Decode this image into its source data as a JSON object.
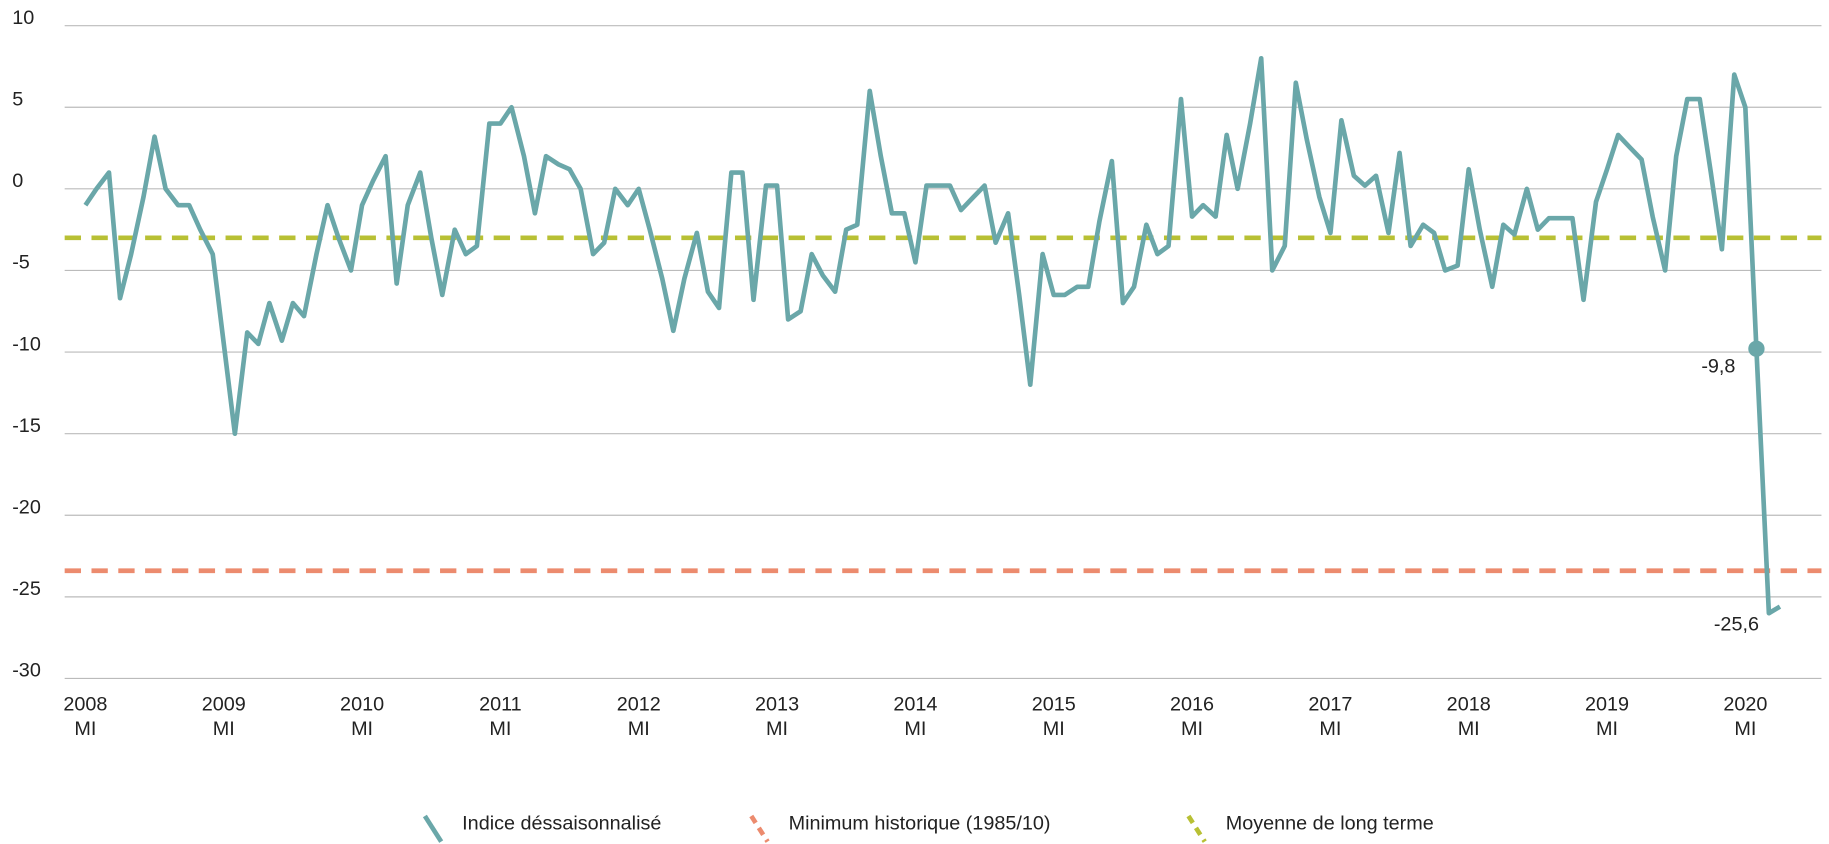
{
  "chart_data": {
    "type": "line",
    "x": [
      2008,
      2008.08,
      2008.17,
      2008.25,
      2008.33,
      2008.42,
      2008.5,
      2008.58,
      2008.67,
      2008.75,
      2008.83,
      2008.92,
      2009,
      2009.08,
      2009.17,
      2009.25,
      2009.33,
      2009.42,
      2009.5,
      2009.58,
      2009.67,
      2009.75,
      2009.83,
      2009.92,
      2010,
      2010.08,
      2010.17,
      2010.25,
      2010.33,
      2010.42,
      2010.5,
      2010.58,
      2010.67,
      2010.75,
      2010.83,
      2010.92,
      2011,
      2011.08,
      2011.17,
      2011.25,
      2011.33,
      2011.42,
      2011.5,
      2011.58,
      2011.67,
      2011.75,
      2011.83,
      2011.92,
      2012,
      2012.08,
      2012.17,
      2012.25,
      2012.33,
      2012.42,
      2012.5,
      2012.58,
      2012.67,
      2012.75,
      2012.83,
      2012.92,
      2013,
      2013.08,
      2013.17,
      2013.25,
      2013.33,
      2013.42,
      2013.5,
      2013.58,
      2013.67,
      2013.75,
      2013.83,
      2013.92,
      2014,
      2014.08,
      2014.17,
      2014.25,
      2014.33,
      2014.42,
      2014.5,
      2014.58,
      2014.67,
      2014.75,
      2014.83,
      2014.92,
      2015,
      2015.08,
      2015.17,
      2015.25,
      2015.33,
      2015.42,
      2015.5,
      2015.58,
      2015.67,
      2015.75,
      2015.83,
      2015.92,
      2016,
      2016.08,
      2016.17,
      2016.25,
      2016.33,
      2016.42,
      2016.5,
      2016.58,
      2016.67,
      2016.75,
      2016.83,
      2016.92,
      2017,
      2017.08,
      2017.17,
      2017.25,
      2017.33,
      2017.42,
      2017.5,
      2017.58,
      2017.67,
      2017.75,
      2017.83,
      2017.92,
      2018,
      2018.08,
      2018.17,
      2018.25,
      2018.33,
      2018.42,
      2018.5,
      2018.58,
      2018.67,
      2018.75,
      2018.83,
      2018.92,
      2019,
      2019.08,
      2019.17,
      2019.25,
      2019.33,
      2019.42,
      2019.5,
      2019.58,
      2019.67,
      2019.75,
      2019.83,
      2019.92,
      2020,
      2020.08,
      2020.17,
      2020.25
    ],
    "series": [
      {
        "name": "Indice déssaisonnalisé",
        "color": "#6aa7a9",
        "values": [
          -1,
          0,
          1,
          -6.7,
          -4,
          -0.5,
          3.2,
          0,
          -1,
          -1,
          -2.5,
          -4,
          -9.5,
          -15,
          -8.8,
          -9.5,
          -7,
          -9.3,
          -7,
          -7.8,
          -4,
          -1,
          -3,
          -5,
          -1,
          0.5,
          2,
          -5.8,
          -1,
          1,
          -3,
          -6.5,
          -2.5,
          -4,
          -3.5,
          4,
          4,
          5,
          2,
          -1.5,
          2,
          1.5,
          1.2,
          0,
          -4,
          -3.3,
          0,
          -1,
          0,
          -2.5,
          -5.5,
          -8.7,
          -5.5,
          -2.7,
          -6.3,
          -7.3,
          1,
          1,
          -6.8,
          0.2,
          0.2,
          -8,
          -7.5,
          -4,
          -5.3,
          -6.3,
          -2.5,
          -2.2,
          6,
          2,
          -1.5,
          -1.5,
          -4.5,
          0.2,
          0.2,
          0.2,
          -1.3,
          -0.5,
          0.2,
          -3.3,
          -1.5,
          -6.5,
          -12,
          -4,
          -6.5,
          -6.5,
          -6,
          -6,
          -2,
          1.7,
          -7,
          -6,
          -2.2,
          -4,
          -3.5,
          5.5,
          -1.7,
          -1,
          -1.7,
          3.3,
          0,
          4,
          8,
          -5,
          -3.5,
          6.5,
          3,
          -0.5,
          -2.7,
          4.2,
          0.8,
          0.2,
          0.8,
          -2.7,
          2.2,
          -3.5,
          -2.2,
          -2.7,
          -5,
          -4.7,
          1.2,
          -2.5,
          -6,
          -2.2,
          -2.8,
          0,
          -2.5,
          -1.8,
          -1.8,
          -1.8,
          -6.8,
          -0.8,
          1.2,
          3.3,
          2.5,
          1.8,
          -1.7,
          -5,
          2,
          5.5,
          5.5,
          1,
          -3.7,
          7,
          5,
          -9.8,
          -26,
          -25.6
        ]
      }
    ],
    "reference_lines": [
      {
        "name": "Minimum historique (1985/10)",
        "value": -23.4,
        "color": "#ec8b6e"
      },
      {
        "name": "Moyenne de long terme",
        "value": -3,
        "color": "#b8c034"
      }
    ],
    "annotations": [
      {
        "point": 145,
        "label": "-9,8",
        "marker": true
      },
      {
        "point": 147,
        "label": "-25,6",
        "marker": false
      }
    ],
    "xlim": [
      2007.85,
      2020.55
    ],
    "xticks": [
      {
        "value": 2008,
        "label": "2008",
        "sublabel": "MI"
      },
      {
        "value": 2009,
        "label": "2009",
        "sublabel": "MI"
      },
      {
        "value": 2010,
        "label": "2010",
        "sublabel": "MI"
      },
      {
        "value": 2011,
        "label": "2011",
        "sublabel": "MI"
      },
      {
        "value": 2012,
        "label": "2012",
        "sublabel": "MI"
      },
      {
        "value": 2013,
        "label": "2013",
        "sublabel": "MI"
      },
      {
        "value": 2014,
        "label": "2014",
        "sublabel": "MI"
      },
      {
        "value": 2015,
        "label": "2015",
        "sublabel": "MI"
      },
      {
        "value": 2016,
        "label": "2016",
        "sublabel": "MI"
      },
      {
        "value": 2017,
        "label": "2017",
        "sublabel": "MI"
      },
      {
        "value": 2018,
        "label": "2018",
        "sublabel": "MI"
      },
      {
        "value": 2019,
        "label": "2019",
        "sublabel": "MI"
      },
      {
        "value": 2020,
        "label": "2020",
        "sublabel": "MI"
      }
    ],
    "ylim": [
      -30,
      10
    ],
    "yticks": [
      10,
      5,
      0,
      -5,
      -10,
      -15,
      -20,
      -25,
      -30
    ],
    "grid": true
  }
}
